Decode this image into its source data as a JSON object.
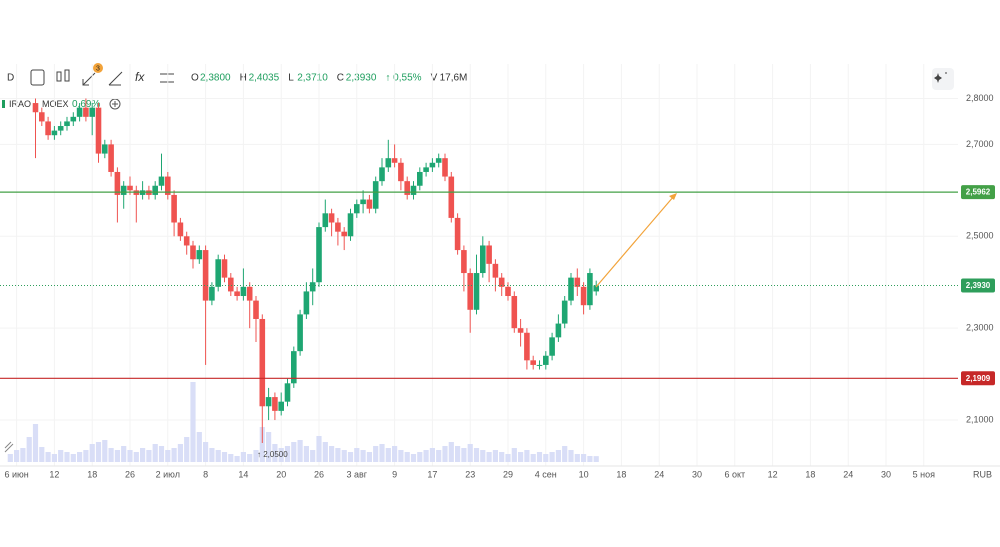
{
  "header": {
    "timeframe": "D",
    "badge": "3",
    "fx": "fx",
    "ohlc": [
      {
        "key": "O",
        "value": "2,3800"
      },
      {
        "key": "H",
        "value": "2,4035"
      },
      {
        "key": "L",
        "value": "2,3710"
      },
      {
        "key": "C",
        "value": "2,3930"
      }
    ],
    "change": "↑ 0,55%",
    "volume_key": "V",
    "volume": "17,6M"
  },
  "legend": {
    "ticker": "IRAO",
    "separator": "·",
    "exchange": "MOEX",
    "change": "0,69%"
  },
  "chart_data": {
    "type": "candlestick",
    "currency": "RUB",
    "up_color": "#1ea672",
    "down_color": "#ef5350",
    "volume_color": "#d9def7",
    "ylim": [
      2.0,
      2.875
    ],
    "yticks": [
      {
        "value": 2.8,
        "label": "2,8000"
      },
      {
        "value": 2.7,
        "label": "2,7000"
      },
      {
        "value": 2.5,
        "label": "2,5000"
      },
      {
        "value": 2.3,
        "label": "2,3000"
      },
      {
        "value": 2.1,
        "label": "2,1000"
      }
    ],
    "grid": true,
    "hlines": [
      {
        "value": 2.5962,
        "label": "2,5962",
        "color": "#43a047",
        "style": "solid"
      },
      {
        "value": 2.393,
        "label": "2,3930",
        "color": "#2e9e5b",
        "style": "dotted"
      },
      {
        "value": 2.1909,
        "label": "2,1909",
        "color": "#c62828",
        "style": "solid"
      }
    ],
    "annotation": {
      "text": "↑ 2,0500"
    },
    "categories": [
      null,
      null,
      "6 июн",
      null,
      null,
      null,
      null,
      null,
      "12",
      null,
      null,
      null,
      null,
      null,
      "18",
      null,
      null,
      null,
      null,
      null,
      "26",
      null,
      null,
      null,
      null,
      null,
      "2 июл",
      null,
      null,
      null,
      null,
      null,
      "8",
      null,
      null,
      null,
      null,
      null,
      "14",
      null,
      null,
      null,
      null,
      null,
      "20",
      null,
      null,
      null,
      null,
      null,
      "26",
      null,
      null,
      null,
      null,
      null,
      "3 авг",
      null,
      null,
      null,
      null,
      null,
      "9",
      null,
      null,
      null,
      null,
      null,
      "17",
      null,
      null,
      null,
      null,
      null,
      "23",
      null,
      null,
      null,
      null,
      null,
      "29",
      null,
      null,
      null,
      null,
      null,
      "4 сен",
      null,
      null,
      null,
      null,
      null,
      "10",
      null,
      null,
      null,
      null,
      null,
      "18",
      null,
      null,
      null,
      null,
      null,
      "24",
      null,
      null,
      null,
      null,
      null,
      "30",
      null,
      null,
      null,
      null,
      null,
      "6 окт",
      null,
      null,
      null,
      null,
      null,
      "12",
      null,
      null,
      null,
      null,
      null,
      "18",
      null,
      null,
      null,
      null,
      null,
      "24",
      null,
      null,
      null,
      null,
      null,
      "30",
      null,
      null,
      null,
      null,
      null,
      "5 ноя",
      null,
      null,
      null
    ],
    "open": [
      null,
      null,
      null,
      null,
      null,
      2.79,
      2.77,
      2.75,
      2.72,
      2.73,
      2.74,
      2.75,
      2.76,
      2.78,
      2.76,
      2.78,
      2.68,
      2.7,
      2.64,
      2.59,
      2.61,
      2.6,
      2.59,
      2.6,
      2.59,
      2.61,
      2.63,
      2.59,
      2.53,
      2.5,
      2.48,
      2.45,
      2.47,
      2.36,
      2.39,
      2.45,
      2.41,
      2.38,
      2.37,
      2.39,
      2.36,
      2.32,
      2.13,
      2.15,
      2.12,
      2.14,
      2.18,
      2.25,
      2.33,
      2.38,
      2.4,
      2.52,
      2.55,
      2.53,
      2.51,
      2.5,
      2.55,
      2.57,
      2.58,
      2.56,
      2.62,
      2.65,
      2.67,
      2.66,
      2.62,
      2.59,
      2.61,
      2.64,
      2.65,
      2.66,
      2.67,
      2.63,
      2.54,
      2.47,
      2.42,
      2.34,
      2.42,
      2.48,
      2.44,
      2.41,
      2.39,
      2.37,
      2.3,
      2.29,
      2.23,
      2.22,
      2.22,
      2.24,
      2.28,
      2.31,
      2.36,
      2.41,
      2.39,
      2.35,
      2.38,
      null,
      null,
      null,
      null,
      null,
      null,
      null,
      null,
      null,
      null,
      null,
      null,
      null,
      null,
      null,
      null,
      null,
      null,
      null,
      null,
      null,
      null,
      null,
      null,
      null,
      null,
      null,
      null,
      null,
      null,
      null,
      null,
      null,
      null,
      null,
      null,
      null,
      null,
      null,
      null,
      null,
      null,
      null,
      null,
      null,
      null,
      null,
      null,
      null,
      null,
      null,
      null,
      null,
      null,
      null
    ],
    "high": [
      null,
      null,
      null,
      null,
      null,
      2.8,
      2.78,
      2.76,
      2.74,
      2.75,
      2.76,
      2.77,
      2.79,
      2.8,
      2.79,
      2.79,
      2.71,
      2.71,
      2.65,
      2.62,
      2.63,
      2.61,
      2.62,
      2.61,
      2.62,
      2.68,
      2.64,
      2.6,
      2.54,
      2.51,
      2.49,
      2.48,
      2.48,
      2.4,
      2.46,
      2.46,
      2.42,
      2.39,
      2.43,
      2.4,
      2.37,
      2.33,
      2.17,
      2.16,
      2.16,
      2.19,
      2.26,
      2.34,
      2.4,
      2.43,
      2.53,
      2.58,
      2.56,
      2.54,
      2.52,
      2.56,
      2.58,
      2.6,
      2.59,
      2.63,
      2.67,
      2.71,
      2.7,
      2.67,
      2.63,
      2.62,
      2.65,
      2.66,
      2.67,
      2.68,
      2.68,
      2.64,
      2.55,
      2.48,
      2.43,
      2.46,
      2.5,
      2.49,
      2.45,
      2.42,
      2.4,
      2.38,
      2.32,
      2.3,
      2.24,
      2.23,
      2.25,
      2.29,
      2.33,
      2.37,
      2.42,
      2.43,
      2.4,
      2.43,
      2.4035,
      null,
      null,
      null,
      null,
      null,
      null,
      null,
      null,
      null,
      null,
      null,
      null,
      null,
      null,
      null,
      null,
      null,
      null,
      null,
      null,
      null,
      null,
      null,
      null,
      null,
      null,
      null,
      null,
      null,
      null,
      null,
      null,
      null,
      null,
      null,
      null,
      null,
      null,
      null,
      null,
      null,
      null,
      null,
      null,
      null,
      null,
      null,
      null,
      null,
      null,
      null,
      null,
      null,
      null,
      null
    ],
    "low": [
      null,
      null,
      null,
      null,
      null,
      2.67,
      2.74,
      2.71,
      2.71,
      2.72,
      2.73,
      2.74,
      2.75,
      2.75,
      2.72,
      2.66,
      2.67,
      2.63,
      2.53,
      2.56,
      2.59,
      2.53,
      2.58,
      2.58,
      2.58,
      2.6,
      2.58,
      2.5,
      2.49,
      2.46,
      2.43,
      2.44,
      2.22,
      2.35,
      2.38,
      2.4,
      2.37,
      2.36,
      2.36,
      2.3,
      2.27,
      2.05,
      2.1,
      2.1,
      2.11,
      2.13,
      2.17,
      2.24,
      2.32,
      2.35,
      2.39,
      2.51,
      2.5,
      2.48,
      2.47,
      2.49,
      2.54,
      2.55,
      2.55,
      2.55,
      2.61,
      2.64,
      2.65,
      2.6,
      2.58,
      2.58,
      2.6,
      2.63,
      2.64,
      2.65,
      2.62,
      2.53,
      2.46,
      2.38,
      2.29,
      2.33,
      2.41,
      2.4,
      2.38,
      2.37,
      2.36,
      2.29,
      2.26,
      2.21,
      2.21,
      2.21,
      2.21,
      2.23,
      2.27,
      2.3,
      2.35,
      2.37,
      2.33,
      2.34,
      2.371,
      null,
      null,
      null,
      null,
      null,
      null,
      null,
      null,
      null,
      null,
      null,
      null,
      null,
      null,
      null,
      null,
      null,
      null,
      null,
      null,
      null,
      null,
      null,
      null,
      null,
      null,
      null,
      null,
      null,
      null,
      null,
      null,
      null,
      null,
      null,
      null,
      null,
      null,
      null,
      null,
      null,
      null,
      null,
      null,
      null,
      null,
      null,
      null,
      null,
      null,
      null,
      null,
      null,
      null,
      null
    ],
    "close": [
      null,
      null,
      null,
      null,
      null,
      2.77,
      2.75,
      2.72,
      2.73,
      2.74,
      2.75,
      2.76,
      2.78,
      2.76,
      2.78,
      2.68,
      2.7,
      2.64,
      2.59,
      2.61,
      2.6,
      2.59,
      2.6,
      2.59,
      2.61,
      2.63,
      2.59,
      2.53,
      2.5,
      2.48,
      2.45,
      2.47,
      2.36,
      2.39,
      2.45,
      2.41,
      2.38,
      2.37,
      2.39,
      2.36,
      2.32,
      2.13,
      2.15,
      2.12,
      2.14,
      2.18,
      2.25,
      2.33,
      2.38,
      2.4,
      2.52,
      2.55,
      2.53,
      2.51,
      2.5,
      2.55,
      2.57,
      2.58,
      2.56,
      2.62,
      2.65,
      2.67,
      2.66,
      2.62,
      2.59,
      2.61,
      2.64,
      2.65,
      2.66,
      2.67,
      2.63,
      2.54,
      2.47,
      2.42,
      2.34,
      2.42,
      2.48,
      2.44,
      2.41,
      2.39,
      2.37,
      2.3,
      2.29,
      2.23,
      2.22,
      2.22,
      2.24,
      2.28,
      2.31,
      2.36,
      2.41,
      2.39,
      2.35,
      2.42,
      2.393,
      null,
      null,
      null,
      null,
      null,
      null,
      null,
      null,
      null,
      null,
      null,
      null,
      null,
      null,
      null,
      null,
      null,
      null,
      null,
      null,
      null,
      null,
      null,
      null,
      null,
      null,
      null,
      null,
      null,
      null,
      null,
      null,
      null,
      null,
      null,
      null,
      null,
      null,
      null,
      null,
      null,
      null,
      null,
      null,
      null,
      null,
      null,
      null,
      null,
      null,
      null,
      null,
      null,
      null,
      null
    ],
    "volume": [
      null,
      24,
      36,
      42,
      75,
      114,
      45,
      30,
      24,
      36,
      30,
      24,
      30,
      36,
      54,
      60,
      66,
      42,
      36,
      48,
      36,
      30,
      42,
      36,
      54,
      48,
      36,
      42,
      54,
      75,
      240,
      90,
      60,
      42,
      36,
      30,
      24,
      18,
      30,
      24,
      36,
      105,
      90,
      54,
      42,
      48,
      60,
      66,
      48,
      36,
      78,
      60,
      48,
      42,
      36,
      30,
      42,
      36,
      30,
      48,
      54,
      42,
      48,
      36,
      30,
      24,
      30,
      36,
      42,
      36,
      48,
      60,
      48,
      42,
      54,
      42,
      36,
      30,
      36,
      30,
      24,
      42,
      30,
      36,
      24,
      30,
      24,
      30,
      36,
      48,
      36,
      24,
      24,
      18,
      17.6,
      null,
      null,
      null,
      null,
      null,
      null,
      null,
      null,
      null,
      null,
      null,
      null,
      null,
      null,
      null,
      null,
      null,
      null,
      null,
      null,
      null,
      null,
      null,
      null,
      null,
      null,
      null,
      null,
      null,
      null,
      null,
      null,
      null,
      null,
      null,
      null,
      null,
      null,
      null,
      null,
      null,
      null,
      null,
      null,
      null,
      null,
      null,
      null,
      null,
      null,
      null,
      null,
      null,
      null,
      null
    ]
  }
}
